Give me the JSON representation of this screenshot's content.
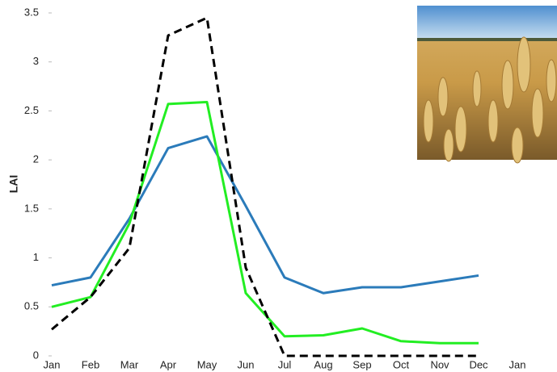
{
  "chart_data": {
    "type": "line",
    "ylabel": "LAI",
    "categories": [
      "Jan",
      "Feb",
      "Mar",
      "Apr",
      "May",
      "Jun",
      "Jul",
      "Aug",
      "Sep",
      "Oct",
      "Nov",
      "Dec",
      "Jan"
    ],
    "series": [
      {
        "color": "#2b7bba",
        "dashed": false,
        "values": [
          0.72,
          0.8,
          1.4,
          2.12,
          2.24,
          1.53,
          0.8,
          0.64,
          0.7,
          0.7,
          0.76,
          0.82,
          null
        ]
      },
      {
        "color": "#22ee22",
        "dashed": false,
        "values": [
          0.5,
          0.6,
          1.35,
          2.57,
          2.59,
          0.64,
          0.2,
          0.21,
          0.28,
          0.15,
          0.13,
          0.13,
          null
        ]
      },
      {
        "color": "#000000",
        "dashed": true,
        "values": [
          0.27,
          0.6,
          1.1,
          3.27,
          3.45,
          0.9,
          0,
          0,
          0,
          0,
          0,
          0,
          null
        ]
      }
    ],
    "ylim": [
      0,
      3.5
    ],
    "yticks": [
      0,
      0.5,
      1,
      1.5,
      2,
      2.5,
      3,
      3.5
    ]
  }
}
